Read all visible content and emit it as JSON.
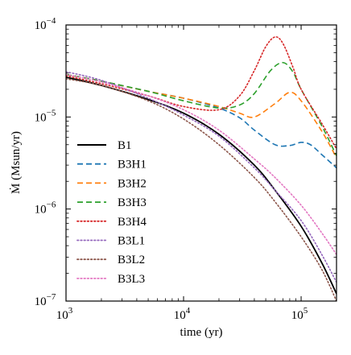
{
  "chart_data": {
    "type": "line",
    "xlabel": "time (yr)",
    "ylabel": "Ṁ (Msun/yr)",
    "xscale": "log",
    "yscale": "log",
    "xlim": [
      1000,
      200000
    ],
    "ylim": [
      1e-07,
      0.0001
    ],
    "x_ticks": [
      {
        "value": 1000,
        "base": "10",
        "exp": "3"
      },
      {
        "value": 10000,
        "base": "10",
        "exp": "4"
      },
      {
        "value": 100000,
        "base": "10",
        "exp": "5"
      }
    ],
    "y_ticks": [
      {
        "value": 1e-07,
        "base": "10",
        "exp": "−7"
      },
      {
        "value": 1e-06,
        "base": "10",
        "exp": "−6"
      },
      {
        "value": 1e-05,
        "base": "10",
        "exp": "−5"
      },
      {
        "value": 0.0001,
        "base": "10",
        "exp": "−4"
      }
    ],
    "grid": false,
    "legend_position": "lower-left",
    "series": [
      {
        "name": "B1",
        "color": "#000000",
        "style": "solid",
        "x": [
          1000,
          2000,
          5000,
          10000,
          20000,
          40000,
          60000,
          100000,
          150000,
          200000
        ],
        "y": [
          2.7e-05,
          2.2e-05,
          1.55e-05,
          1.1e-05,
          6.5e-06,
          3e-06,
          1.6e-06,
          6.5e-07,
          2.6e-07,
          1.2e-07
        ]
      },
      {
        "name": "B3H1",
        "color": "#1f77b4",
        "style": "dashed",
        "x": [
          1000,
          2000,
          5000,
          10000,
          20000,
          30000,
          40000,
          60000,
          80000,
          100000,
          120000,
          150000,
          200000
        ],
        "y": [
          2.9e-05,
          2.45e-05,
          1.9e-05,
          1.6e-05,
          1.25e-05,
          9.8e-06,
          7.2e-06,
          5e-06,
          4.9e-06,
          5.3e-06,
          5e-06,
          3.9e-06,
          2.8e-06
        ]
      },
      {
        "name": "B3H2",
        "color": "#ff7f0e",
        "style": "dashed",
        "x": [
          1000,
          2000,
          5000,
          10000,
          20000,
          30000,
          40000,
          60000,
          80000,
          100000,
          150000,
          200000
        ],
        "y": [
          2.9e-05,
          2.45e-05,
          1.9e-05,
          1.6e-05,
          1.3e-05,
          1.1e-05,
          1e-05,
          1.4e-05,
          1.85e-05,
          1.5e-05,
          7e-06,
          3.6e-06
        ]
      },
      {
        "name": "B3H3",
        "color": "#2ca02c",
        "style": "dashed",
        "x": [
          1000,
          2000,
          5000,
          10000,
          20000,
          30000,
          40000,
          55000,
          70000,
          85000,
          100000,
          150000,
          200000
        ],
        "y": [
          2.9e-05,
          2.45e-05,
          1.9e-05,
          1.5e-05,
          1.25e-05,
          1.35e-05,
          1.8e-05,
          3.2e-05,
          3.9e-05,
          3.1e-05,
          2e-05,
          8e-06,
          3.8e-06
        ]
      },
      {
        "name": "B3H4",
        "color": "#8c2d04",
        "style": "dotted",
        "dot_color": "#d62728",
        "x": [
          1000,
          2000,
          5000,
          10000,
          20000,
          30000,
          40000,
          50000,
          60000,
          70000,
          85000,
          100000,
          150000,
          200000
        ],
        "y": [
          2.8e-05,
          2.3e-05,
          1.7e-05,
          1.3e-05,
          1.2e-05,
          1.7e-05,
          3.2e-05,
          5.8e-05,
          7.4e-05,
          6.3e-05,
          3.5e-05,
          2e-05,
          8.5e-06,
          4.5e-06
        ]
      },
      {
        "name": "B3L1",
        "color": "#9467bd",
        "style": "dotted",
        "x": [
          1000,
          2000,
          5000,
          10000,
          20000,
          40000,
          60000,
          100000,
          150000,
          200000
        ],
        "y": [
          3.1e-05,
          2.5e-05,
          1.6e-05,
          1.05e-05,
          6.2e-06,
          2.8e-06,
          1.6e-06,
          7.5e-07,
          3.2e-07,
          1.6e-07
        ]
      },
      {
        "name": "B3L2",
        "color": "#8c564b",
        "style": "dotted",
        "x": [
          1000,
          2000,
          5000,
          10000,
          20000,
          40000,
          60000,
          100000,
          150000,
          200000
        ],
        "y": [
          2.6e-05,
          2.2e-05,
          1.5e-05,
          9.5e-06,
          5e-06,
          2.2e-06,
          1.2e-06,
          5e-07,
          2.2e-07,
          1e-07
        ]
      },
      {
        "name": "B3L3",
        "color": "#e377c2",
        "style": "dotted",
        "x": [
          1000,
          2000,
          5000,
          10000,
          20000,
          40000,
          60000,
          100000,
          150000,
          200000
        ],
        "y": [
          2.9e-05,
          2.4e-05,
          1.7e-05,
          1.2e-05,
          7.2e-06,
          3.5e-06,
          2.2e-06,
          1.1e-06,
          5.5e-07,
          3.2e-07
        ]
      }
    ]
  }
}
